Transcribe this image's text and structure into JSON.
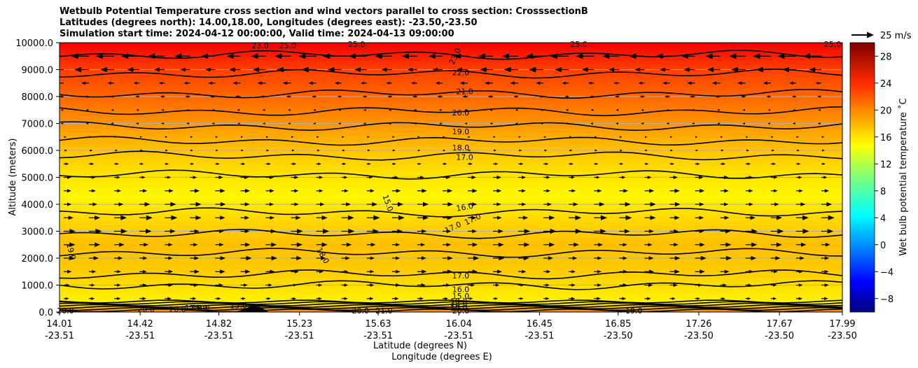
{
  "title": {
    "line1": "Wetbulb Potential Temperature cross section and wind vectors parallel to cross section: CrosssectionB",
    "line2": "Latitudes (degrees north): 14.00,18.00, Longitudes (degrees east): -23.50,-23.50",
    "line3": "Simulation start time: 2024-04-12 00:00:00, Valid time: 2024-04-13 09:00:00"
  },
  "chart_data": {
    "type": "heatmap",
    "subtype": "filled contour cross section with wind vectors",
    "ylabel": "Altitude (meters)",
    "xlabel_lat": "Latitude (degrees N)",
    "xlabel_lon": "Longitude (degrees E)",
    "ylim": [
      0,
      10000
    ],
    "y_ticks": [
      "0.0",
      "1000.0",
      "2000.0",
      "3000.0",
      "4000.0",
      "5000.0",
      "6000.0",
      "7000.0",
      "8000.0",
      "9000.0",
      "10000.0"
    ],
    "y_tick_values": [
      0,
      1000,
      2000,
      3000,
      4000,
      5000,
      6000,
      7000,
      8000,
      9000,
      10000
    ],
    "xlim": [
      14.01,
      17.99
    ],
    "x_tick_lat": [
      "14.01",
      "14.42",
      "14.82",
      "15.23",
      "15.63",
      "16.04",
      "16.45",
      "16.85",
      "17.26",
      "17.67",
      "17.99"
    ],
    "x_tick_lon": [
      "-23.51",
      "-23.51",
      "-23.51",
      "-23.51",
      "-23.51",
      "-23.51",
      "-23.51",
      "-23.50",
      "-23.50",
      "-23.50",
      "-23.50"
    ],
    "x_tick_values": [
      14.01,
      14.42,
      14.82,
      15.23,
      15.63,
      16.04,
      16.45,
      16.85,
      17.26,
      17.67,
      17.99
    ],
    "colorbar": {
      "label": "Wet bulb potential temperature ˚C",
      "range": [
        -10,
        30
      ],
      "ticks": [
        "−8",
        "−4",
        "0",
        "4",
        "8",
        "12",
        "16",
        "20",
        "24",
        "28"
      ],
      "tick_values": [
        -8,
        -4,
        0,
        4,
        8,
        12,
        16,
        20,
        24,
        28
      ]
    },
    "theta_profile": [
      {
        "alt": 0,
        "value": 20.0
      },
      {
        "alt": 300,
        "value": 15.5
      },
      {
        "alt": 800,
        "value": 16.0
      },
      {
        "alt": 1500,
        "value": 17.0
      },
      {
        "alt": 2500,
        "value": 17.5
      },
      {
        "alt": 3500,
        "value": 16.5
      },
      {
        "alt": 4300,
        "value": 15.3
      },
      {
        "alt": 5200,
        "value": 16.2
      },
      {
        "alt": 6000,
        "value": 17.3
      },
      {
        "alt": 7000,
        "value": 19.2
      },
      {
        "alt": 8000,
        "value": 21.0
      },
      {
        "alt": 9000,
        "value": 22.5
      },
      {
        "alt": 10000,
        "value": 25.5
      }
    ],
    "contour_levels": [
      {
        "value": 16.0,
        "alt": 1000
      },
      {
        "value": 17.0,
        "alt": 1400
      },
      {
        "value": 18.0,
        "alt": 2200
      },
      {
        "value": 17.0,
        "alt": 2900
      },
      {
        "value": 16.0,
        "alt": 3700
      },
      {
        "value": 16.0,
        "alt": 5100
      },
      {
        "value": 17.0,
        "alt": 5800
      },
      {
        "value": 18.0,
        "alt": 6350
      },
      {
        "value": 19.0,
        "alt": 6900
      },
      {
        "value": 20.0,
        "alt": 7450
      },
      {
        "value": 21.0,
        "alt": 8100
      },
      {
        "value": 22.0,
        "alt": 8850
      },
      {
        "value": 23.0,
        "alt": 9550
      }
    ],
    "contour_labels": [
      {
        "text": "23.0",
        "lat": 15.03,
        "alt": 9900,
        "rot": 0
      },
      {
        "text": "25.0",
        "lat": 15.17,
        "alt": 9900,
        "rot": 0
      },
      {
        "text": "25.0",
        "lat": 15.52,
        "alt": 9950,
        "rot": 0
      },
      {
        "text": "23.0",
        "lat": 16.02,
        "alt": 9500,
        "rot": -65
      },
      {
        "text": "25.0",
        "lat": 16.65,
        "alt": 9950,
        "rot": 0
      },
      {
        "text": "25.0",
        "lat": 17.94,
        "alt": 9950,
        "rot": 0
      },
      {
        "text": "22.0",
        "lat": 16.05,
        "alt": 8900,
        "rot": 0
      },
      {
        "text": "21.0",
        "lat": 16.07,
        "alt": 8200,
        "rot": 0
      },
      {
        "text": "20.0",
        "lat": 16.05,
        "alt": 7400,
        "rot": 0
      },
      {
        "text": "19.0",
        "lat": 16.05,
        "alt": 6700,
        "rot": 0
      },
      {
        "text": "18.0",
        "lat": 16.05,
        "alt": 6100,
        "rot": 0
      },
      {
        "text": "17.0",
        "lat": 16.07,
        "alt": 5750,
        "rot": 0
      },
      {
        "text": "15.0",
        "lat": 15.68,
        "alt": 4050,
        "rot": 70
      },
      {
        "text": "16.0",
        "lat": 16.07,
        "alt": 3900,
        "rot": -10
      },
      {
        "text": "17.0",
        "lat": 16.11,
        "alt": 3450,
        "rot": -25
      },
      {
        "text": "17.0",
        "lat": 16.01,
        "alt": 3150,
        "rot": -25
      },
      {
        "text": "19.0",
        "lat": 14.07,
        "alt": 2250,
        "rot": 75
      },
      {
        "text": "18.0",
        "lat": 15.35,
        "alt": 2100,
        "rot": 60
      },
      {
        "text": "17.0",
        "lat": 16.05,
        "alt": 1350,
        "rot": 0
      },
      {
        "text": "16.0",
        "lat": 16.05,
        "alt": 850,
        "rot": 0
      },
      {
        "text": "15.0",
        "lat": 16.05,
        "alt": 600,
        "rot": 0
      },
      {
        "text": "19.0",
        "lat": 16.04,
        "alt": 400,
        "rot": 0
      },
      {
        "text": "18.0",
        "lat": 16.04,
        "alt": 300,
        "rot": 0
      },
      {
        "text": "19.0",
        "lat": 16.04,
        "alt": 150,
        "rot": 0
      },
      {
        "text": "15.0",
        "lat": 14.92,
        "alt": 250,
        "rot": 0
      },
      {
        "text": "20.0",
        "lat": 14.61,
        "alt": 100,
        "rot": 0
      },
      {
        "text": "18.0",
        "lat": 14.73,
        "alt": 150,
        "rot": 0
      },
      {
        "text": "17.0",
        "lat": 14.69,
        "alt": 150,
        "rot": 0
      },
      {
        "text": "15.0",
        "lat": 14.72,
        "alt": 150,
        "rot": 0
      },
      {
        "text": "20.0",
        "lat": 14.45,
        "alt": 100,
        "rot": 0
      },
      {
        "text": "20.0",
        "lat": 14.04,
        "alt": 50,
        "rot": 0
      },
      {
        "text": "20.0",
        "lat": 15.54,
        "alt": 50,
        "rot": 0
      },
      {
        "text": "21.0",
        "lat": 15.66,
        "alt": 50,
        "rot": 0
      },
      {
        "text": "20.0",
        "lat": 16.05,
        "alt": 50,
        "rot": 0
      },
      {
        "text": "19.0",
        "lat": 16.93,
        "alt": 50,
        "rot": 0
      }
    ],
    "wind_field": [
      {
        "alt": 9500,
        "u": -12
      },
      {
        "alt": 9000,
        "u": -8
      },
      {
        "alt": 8500,
        "u": -4
      },
      {
        "alt": 8000,
        "u": -2
      },
      {
        "alt": 7500,
        "u": -1
      },
      {
        "alt": 7000,
        "u": -1
      },
      {
        "alt": 6500,
        "u": 0.5
      },
      {
        "alt": 6000,
        "u": 1
      },
      {
        "alt": 5500,
        "u": 2
      },
      {
        "alt": 5000,
        "u": 4
      },
      {
        "alt": 4500,
        "u": 5
      },
      {
        "alt": 4000,
        "u": 6
      },
      {
        "alt": 3500,
        "u": 7
      },
      {
        "alt": 3000,
        "u": 7
      },
      {
        "alt": 2500,
        "u": 6
      },
      {
        "alt": 2000,
        "u": 6
      },
      {
        "alt": 1500,
        "u": 5
      },
      {
        "alt": 1000,
        "u": 4
      },
      {
        "alt": 500,
        "u": 3
      }
    ],
    "wind_columns": 31,
    "quiver_key": {
      "label": "25 m/s",
      "speed": 25
    }
  }
}
